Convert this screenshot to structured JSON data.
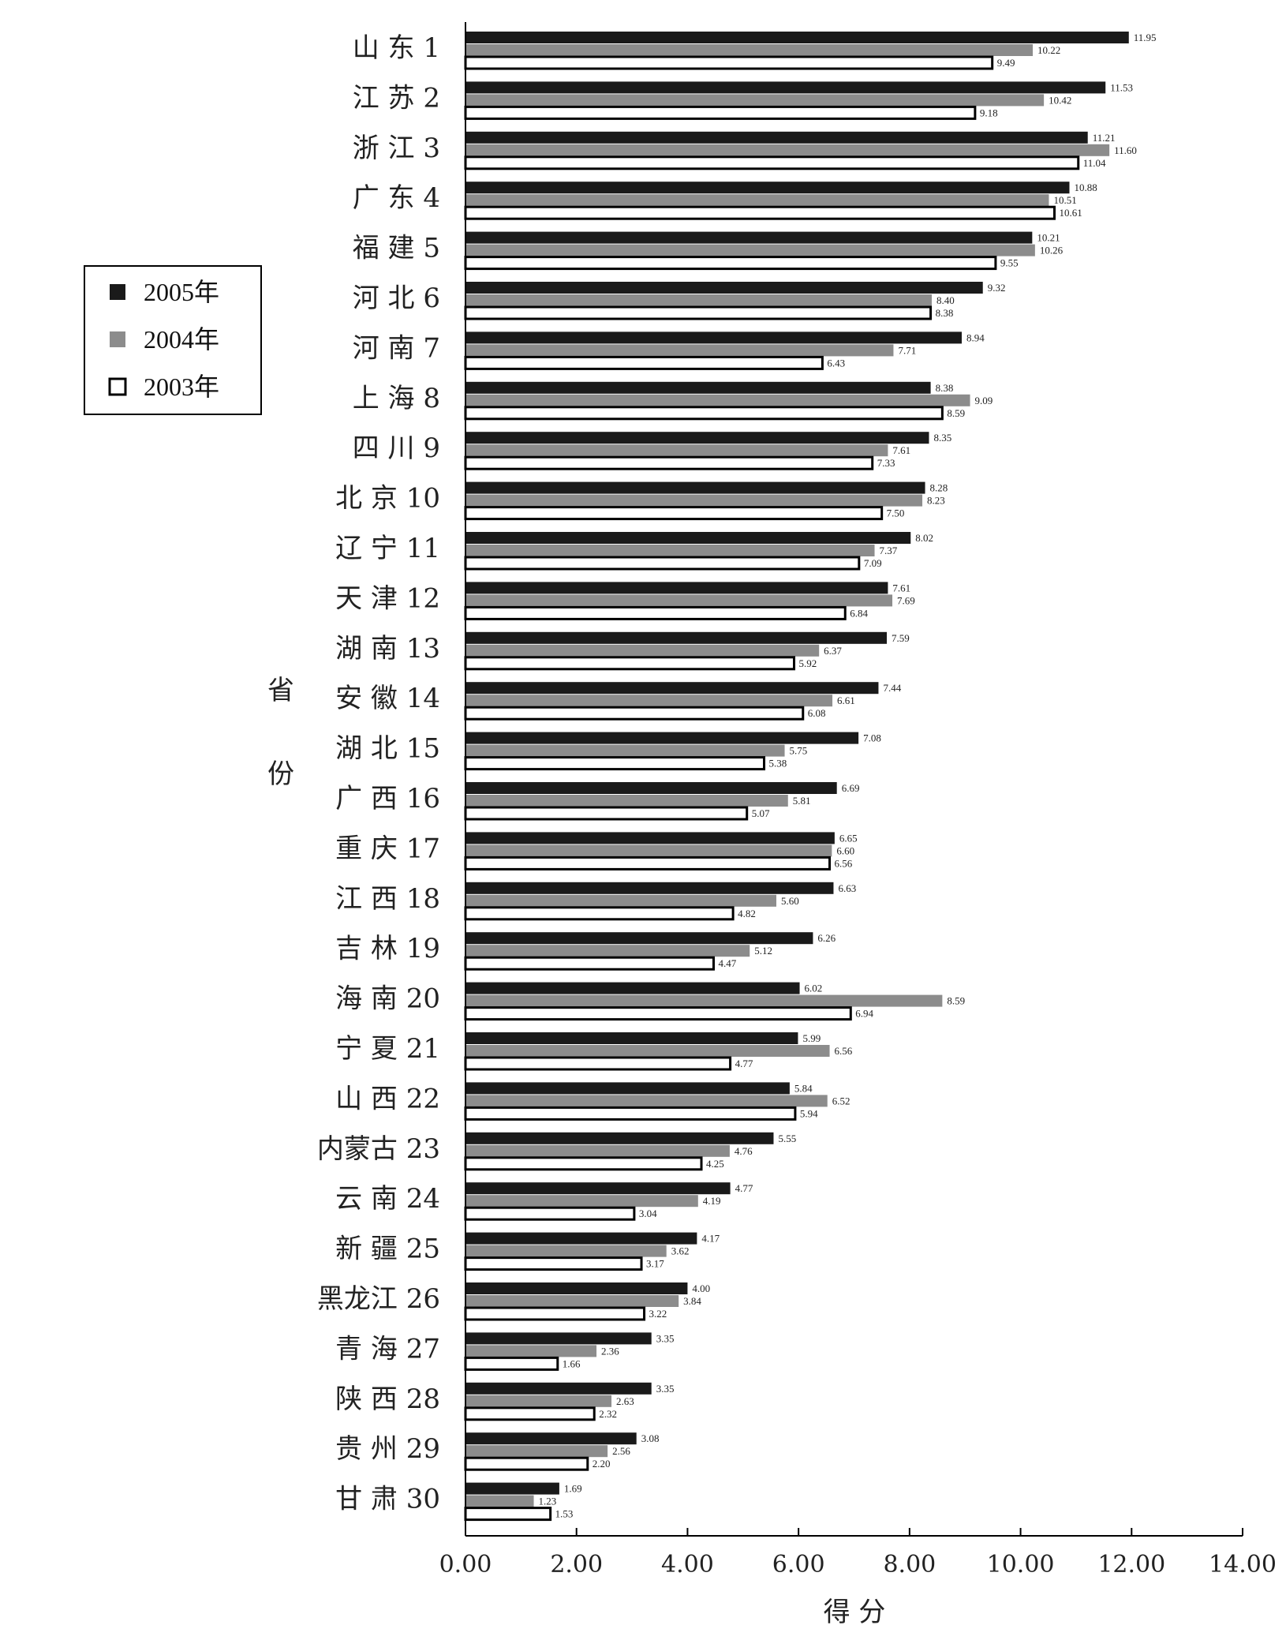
{
  "chart_data": {
    "type": "bar",
    "orientation": "horizontal",
    "xlabel": "得 分",
    "ylabel": "省份",
    "xlim": [
      0,
      14
    ],
    "xticks": [
      "0.00",
      "2.00",
      "4.00",
      "6.00",
      "8.00",
      "10.00",
      "12.00",
      "14.00"
    ],
    "legend_position": "left",
    "categories": [
      "山 东 1",
      "江 苏 2",
      "浙 江 3",
      "广 东 4",
      "福 建 5",
      "河 北 6",
      "河 南 7",
      "上 海 8",
      "四 川 9",
      "北 京 10",
      "辽 宁 11",
      "天 津 12",
      "湖 南 13",
      "安 徽 14",
      "湖 北 15",
      "广 西 16",
      "重 庆 17",
      "江 西 18",
      "吉 林 19",
      "海 南 20",
      "宁 夏 21",
      "山 西 22",
      "内蒙古 23",
      "云 南 24",
      "新 疆 25",
      "黑龙江 26",
      "青 海 27",
      "陕 西 28",
      "贵 州 29",
      "甘 肃 30"
    ],
    "series": [
      {
        "name": "2005年",
        "color": "#1a1a1a",
        "style": "solid",
        "values": [
          11.95,
          11.53,
          11.21,
          10.88,
          10.21,
          9.32,
          8.94,
          8.38,
          8.35,
          8.28,
          8.02,
          7.61,
          7.59,
          7.44,
          7.08,
          6.69,
          6.65,
          6.63,
          6.26,
          6.02,
          5.99,
          5.84,
          5.55,
          4.77,
          4.17,
          4.0,
          3.35,
          3.35,
          3.08,
          1.69
        ]
      },
      {
        "name": "2004年",
        "color": "#8c8c8c",
        "style": "solid",
        "values": [
          10.22,
          10.42,
          11.6,
          10.51,
          10.26,
          8.4,
          7.71,
          9.09,
          7.61,
          8.23,
          7.37,
          7.69,
          6.37,
          6.61,
          5.75,
          5.81,
          6.6,
          5.6,
          5.12,
          8.59,
          6.56,
          6.52,
          4.76,
          4.19,
          3.62,
          3.84,
          2.36,
          2.63,
          2.56,
          1.23
        ]
      },
      {
        "name": "2003年",
        "color": "#ffffff",
        "style": "outline",
        "values": [
          9.49,
          9.18,
          11.04,
          10.61,
          9.55,
          8.38,
          6.43,
          8.59,
          7.33,
          7.5,
          7.09,
          6.84,
          5.92,
          6.08,
          5.38,
          5.07,
          6.56,
          4.82,
          4.47,
          6.94,
          4.77,
          5.94,
          4.25,
          3.04,
          3.17,
          3.22,
          1.66,
          2.32,
          2.2,
          1.53
        ]
      }
    ]
  }
}
